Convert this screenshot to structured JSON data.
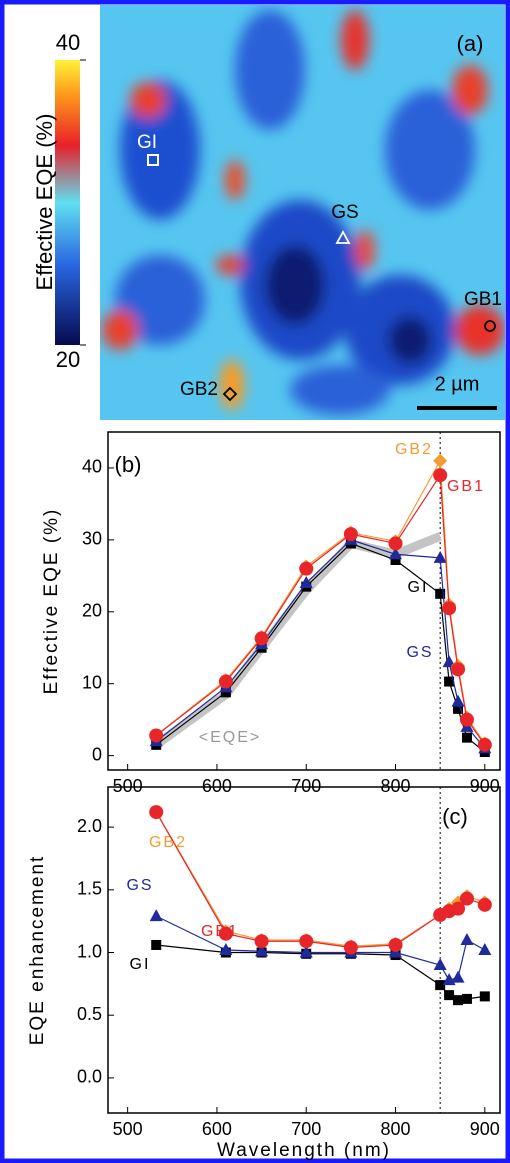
{
  "chart_data": [
    {
      "type": "heatmap",
      "title": "(a)",
      "colorbar_label": "Effective EQE (%)",
      "clim": [
        20,
        40
      ],
      "colorbar_ticks": [
        20,
        40
      ],
      "points": [
        "GI",
        "GS",
        "GB1",
        "GB2"
      ],
      "scale_bar": "2 µm"
    },
    {
      "type": "line",
      "title": "(b)",
      "ylabel": "Effective EQE (%)",
      "x": [
        532,
        610,
        650,
        700,
        750,
        800,
        850,
        860,
        870,
        880,
        900
      ],
      "xlim": [
        478,
        917
      ],
      "xticks": [
        500,
        600,
        700,
        800,
        900
      ],
      "ylim": [
        -2,
        45
      ],
      "yticks": [
        0,
        10,
        20,
        30,
        40
      ],
      "vline": 850,
      "series": [
        {
          "name": "<EQE>",
          "color": "#c4c4c4",
          "marker": "band",
          "values": [
            1.5,
            8.5,
            15,
            23,
            29.5,
            28,
            30.5,
            null,
            null,
            null,
            null
          ]
        },
        {
          "name": "GI",
          "color": "#000000",
          "marker": "square",
          "values": [
            1.5,
            8.8,
            15,
            23.5,
            29.5,
            27.2,
            22.5,
            10.3,
            6.5,
            2.5,
            0.5
          ]
        },
        {
          "name": "GS",
          "color": "#1f2a9c",
          "marker": "triangle",
          "values": [
            2,
            9.5,
            15.5,
            24,
            30,
            28,
            27.5,
            13,
            7.5,
            4,
            1
          ]
        },
        {
          "name": "GB2",
          "color": "#f39c34",
          "marker": "diamond",
          "values": [
            2.8,
            10.5,
            16.5,
            26.3,
            31,
            29.8,
            41,
            21,
            12.5,
            5.3,
            1.7
          ]
        },
        {
          "name": "GB1",
          "color": "#e8262a",
          "marker": "circle",
          "values": [
            2.8,
            10.3,
            16.3,
            26,
            30.8,
            29.5,
            39,
            20.5,
            12,
            5,
            1.5
          ]
        }
      ]
    },
    {
      "type": "line",
      "title": "(c)",
      "xlabel": "Wavelength (nm)",
      "ylabel": "EQE enhancement",
      "x": [
        532,
        610,
        650,
        700,
        750,
        800,
        850,
        860,
        870,
        880,
        900
      ],
      "xlim": [
        478,
        917
      ],
      "xticks": [
        500,
        600,
        700,
        800,
        900
      ],
      "ylim": [
        -0.28,
        2.32
      ],
      "yticks": [
        {
          "value": 0,
          "label": "0.0"
        },
        {
          "value": 0.5,
          "label": "0.5"
        },
        {
          "value": 1,
          "label": "1.0"
        },
        {
          "value": 1.5,
          "label": "1.5"
        },
        {
          "value": 2,
          "label": "2.0"
        }
      ],
      "vline": 850,
      "series": [
        {
          "name": "GI",
          "color": "#000000",
          "marker": "square",
          "values": [
            1.06,
            1.0,
            1.0,
            0.99,
            0.99,
            0.98,
            0.74,
            0.66,
            0.62,
            0.63,
            0.65
          ]
        },
        {
          "name": "GS",
          "color": "#1f2a9c",
          "marker": "triangle",
          "values": [
            1.29,
            1.02,
            1.01,
            1.0,
            1.0,
            1.0,
            0.9,
            0.78,
            0.8,
            1.1,
            1.02
          ]
        },
        {
          "name": "GB2",
          "color": "#f39c34",
          "marker": "diamond",
          "values": [
            2.12,
            1.17,
            1.1,
            1.1,
            1.05,
            1.07,
            1.3,
            1.35,
            1.4,
            1.45,
            1.4
          ]
        },
        {
          "name": "GB1",
          "color": "#e8262a",
          "marker": "circle",
          "values": [
            2.12,
            1.15,
            1.09,
            1.09,
            1.04,
            1.06,
            1.3,
            1.33,
            1.35,
            1.43,
            1.38
          ]
        }
      ]
    }
  ]
}
